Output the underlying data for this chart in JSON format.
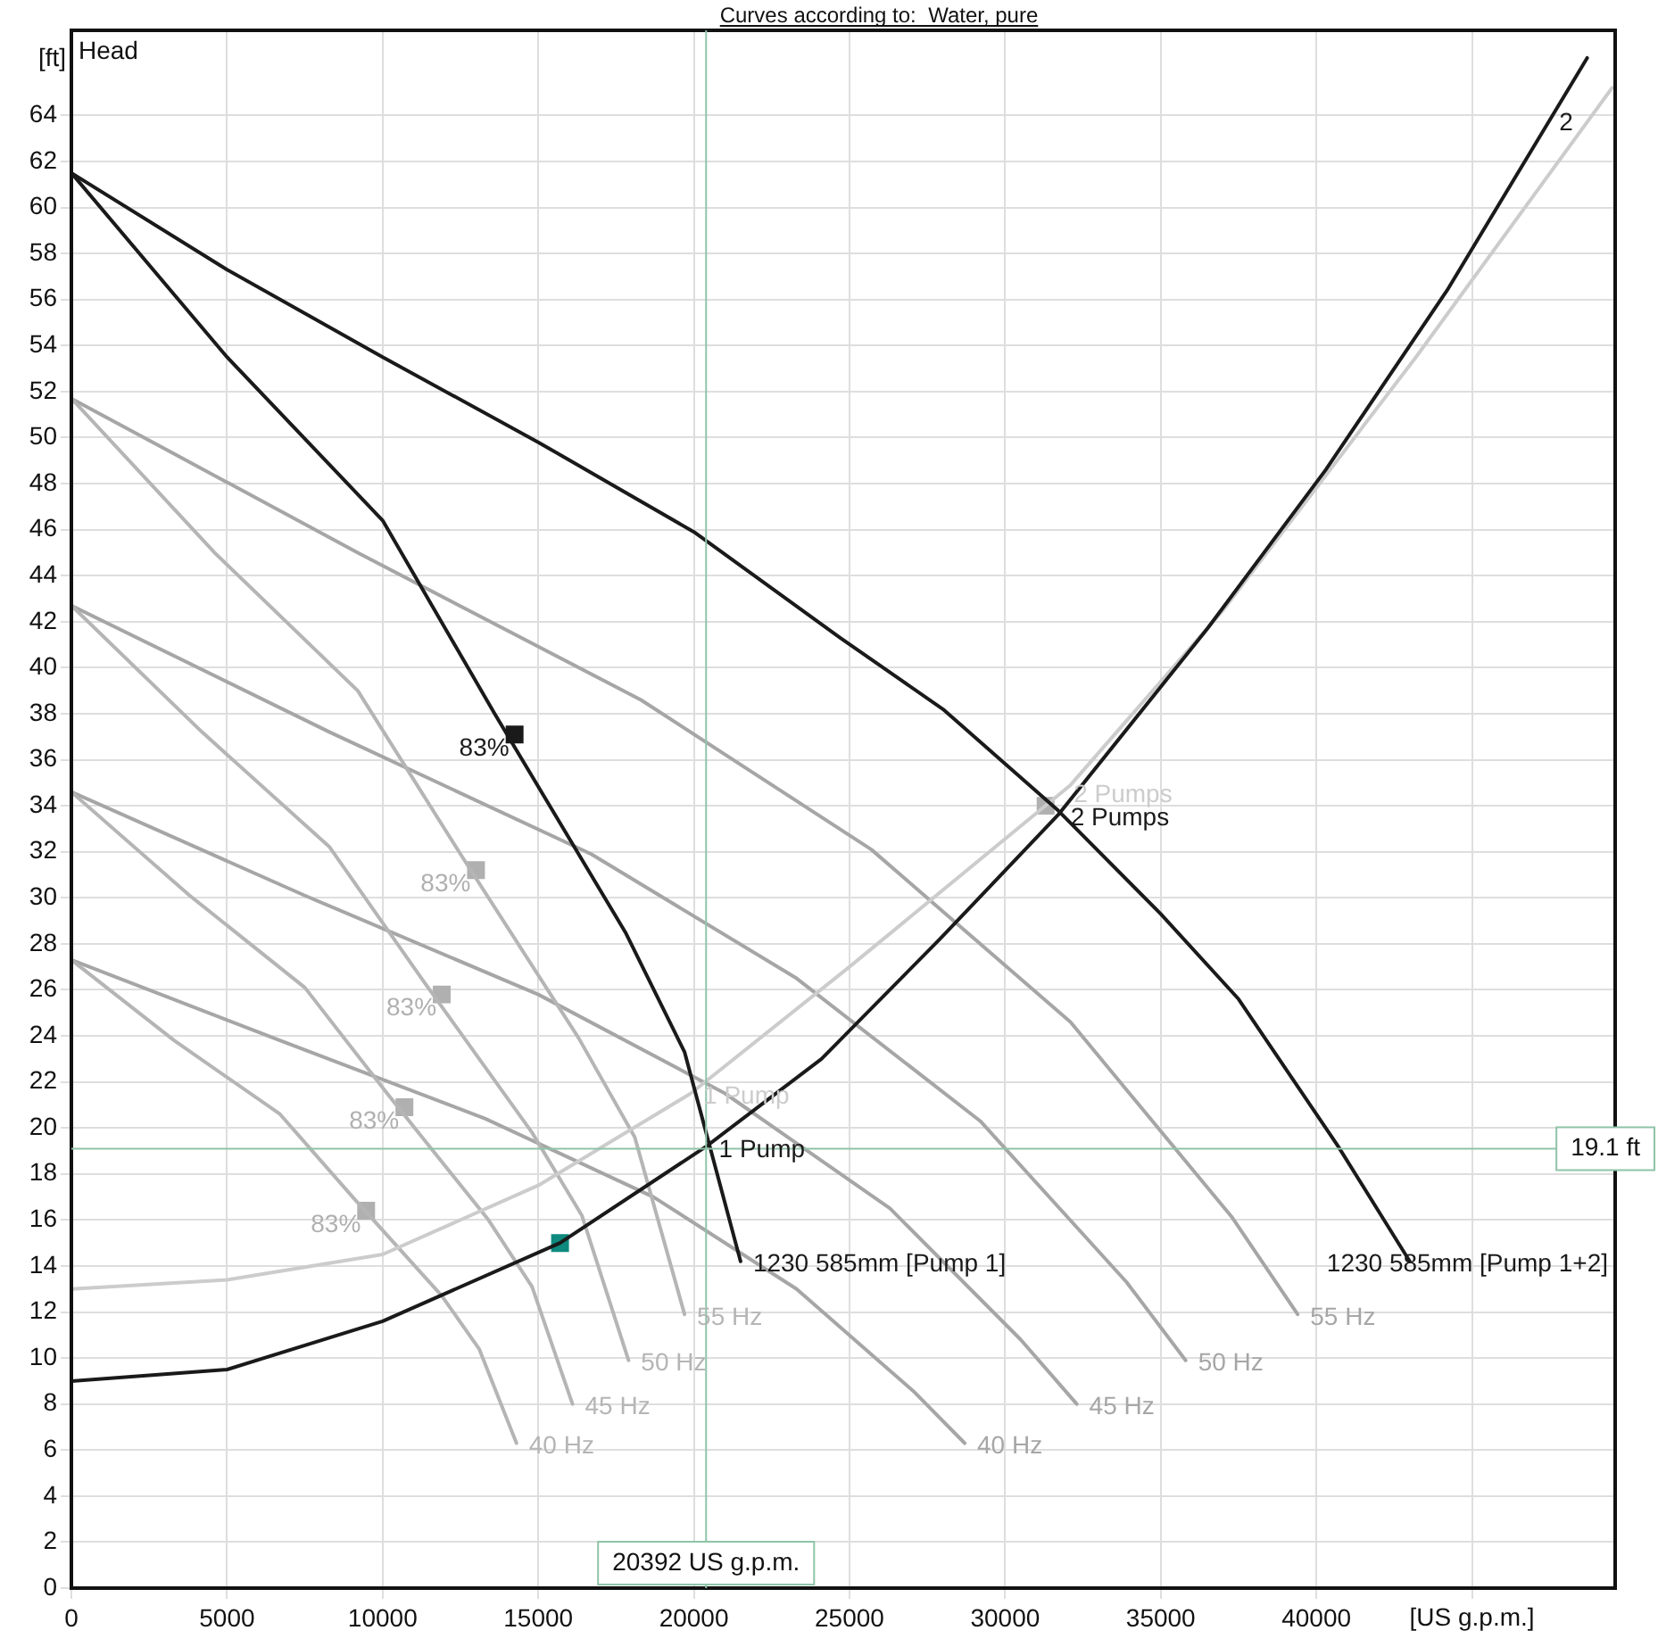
{
  "chart_data": {
    "type": "line",
    "title": "Curves according to:  Water, pure",
    "xlabel": "[US g.p.m.]",
    "ylabel": "[ft]",
    "xlim": [
      0,
      49600
    ],
    "ylim": [
      0,
      67.7
    ],
    "xticks": [
      0,
      5000,
      10000,
      15000,
      20000,
      25000,
      30000,
      35000,
      40000,
      {
        "value": 45000,
        "label": null
      }
    ],
    "yticks": [
      0,
      2,
      4,
      6,
      8,
      10,
      12,
      14,
      16,
      18,
      20,
      22,
      24,
      26,
      28,
      30,
      32,
      34,
      36,
      38,
      40,
      42,
      44,
      46,
      48,
      50,
      52,
      54,
      56,
      58,
      60,
      62,
      64
    ],
    "grid": true,
    "legend": false,
    "marker": "none",
    "line_style": "solid",
    "series": [
      {
        "color": "#1a1a1a",
        "x": [
          0,
          5000,
          10000,
          13600,
          17800,
          19700,
          21500
        ],
        "values": [
          61.5,
          53.5,
          46.4,
          38,
          28.5,
          23.3,
          14.2
        ]
      },
      {
        "color": "#1a1a1a",
        "x": [
          0,
          5000,
          10000,
          15000,
          20000,
          24700,
          28000,
          31700,
          35000,
          37500,
          40700,
          43000
        ],
        "values": [
          61.5,
          57.3,
          53.5,
          49.8,
          45.9,
          41.3,
          38.2,
          33.8,
          29.3,
          25.6,
          19.2,
          14.2
        ]
      },
      {
        "color": "#1a1a1a",
        "x": [
          0,
          5000,
          10000,
          15700,
          20400,
          24100,
          27900,
          31700,
          36500,
          40300,
          44200,
          48700
        ],
        "values": [
          9,
          9.5,
          11.6,
          15,
          19.2,
          23,
          28.2,
          33.6,
          41.7,
          48.6,
          56.4,
          66.5
        ]
      },
      {
        "color": "#cccccc",
        "x": [
          0,
          5000,
          10000,
          15000,
          19900,
          25000,
          32100,
          37000,
          43200,
          49500
        ],
        "values": [
          13,
          13.4,
          14.5,
          17.5,
          21.5,
          27,
          34.9,
          42.5,
          53.5,
          65.2
        ]
      },
      {
        "color": "#b5b5b5",
        "x": [
          0,
          4600,
          9200,
          12500,
          16300,
          18100,
          19700
        ],
        "values": [
          51.7,
          45,
          39,
          31.9,
          23.9,
          19.6,
          11.9
        ]
      },
      {
        "color": "#b5b5b5",
        "x": [
          0,
          4200,
          8300,
          11300,
          14800,
          16400,
          17900
        ],
        "values": [
          42.7,
          37.2,
          32.2,
          26.4,
          19.8,
          16.2,
          9.9
        ]
      },
      {
        "color": "#b5b5b5",
        "x": [
          0,
          3800,
          7500,
          10200,
          13400,
          14800,
          16100
        ],
        "values": [
          34.6,
          30.1,
          26.1,
          21.4,
          16,
          13.1,
          8
        ]
      },
      {
        "color": "#b5b5b5",
        "x": [
          0,
          3300,
          6700,
          9100,
          11900,
          13100,
          14300
        ],
        "values": [
          27.3,
          23.8,
          20.6,
          16.9,
          12.7,
          10.4,
          6.3
        ]
      },
      {
        "color": "#a6a6a6",
        "x": [
          0,
          9200,
          18300,
          25700,
          32100,
          37300,
          39400
        ],
        "values": [
          51.7,
          45,
          38.6,
          32.1,
          24.6,
          16.1,
          11.9
        ]
      },
      {
        "color": "#a6a6a6",
        "x": [
          0,
          8300,
          16700,
          23300,
          29200,
          33900,
          35800
        ],
        "values": [
          42.7,
          37.2,
          31.9,
          26.5,
          20.3,
          13.3,
          9.9
        ]
      },
      {
        "color": "#a6a6a6",
        "x": [
          0,
          7500,
          15000,
          21000,
          26300,
          30500,
          32300
        ],
        "values": [
          34.6,
          30.1,
          25.8,
          21.5,
          16.5,
          10.8,
          8
        ]
      },
      {
        "color": "#a6a6a6",
        "x": [
          0,
          6700,
          13300,
          18700,
          23300,
          27100,
          28700
        ],
        "values": [
          27.3,
          23.8,
          20.4,
          17,
          13,
          8.5,
          6.3
        ]
      },
      {
        "type": "scatter",
        "marker": "square",
        "color": "#1a1a1a",
        "x": [
          14240
        ],
        "values": [
          37.1
        ]
      },
      {
        "type": "scatter",
        "marker": "square",
        "color": "#b0b0b0",
        "x": [
          13000,
          11900,
          10700,
          9470,
          31300
        ],
        "values": [
          31.2,
          25.8,
          20.9,
          16.4,
          34
        ]
      },
      {
        "type": "scatter",
        "marker": "square",
        "color": "#0e8a7e",
        "x": [
          15700
        ],
        "values": [
          15
        ]
      }
    ],
    "ref_lines": [
      {
        "axis": "x",
        "value": 20392,
        "label": "20392 US g.p.m.",
        "color": "#8fc4a8"
      },
      {
        "axis": "y",
        "value": 19.1,
        "label": "19.1 ft",
        "color": "#8fc4a8"
      }
    ],
    "annotations": [
      "Head",
      {
        "text": "83%",
        "x": 14240,
        "y": 37.1
      },
      {
        "text": "83%",
        "x": 13000,
        "y": 31.2
      },
      {
        "text": "83%",
        "x": 11900,
        "y": 25.8
      },
      {
        "text": "83%",
        "x": 10700,
        "y": 20.9
      },
      {
        "text": "83%",
        "x": 9470,
        "y": 16.4
      },
      {
        "text": "1 Pump",
        "x": 19900,
        "y": 21.5
      },
      {
        "text": "1 Pump",
        "x": 20400,
        "y": 19.2
      },
      {
        "text": "2 Pumps",
        "x": 31800,
        "y": 34.6
      },
      {
        "text": "2 Pumps",
        "x": 31700,
        "y": 33.6
      },
      {
        "text": "1230 585mm [Pump 1]",
        "x": 21500,
        "y": 14.2
      },
      {
        "text": "1230 585mm [Pump 1+2]",
        "x": 43000,
        "y": 14.2
      },
      {
        "text": "55 Hz",
        "x": 19700,
        "y": 11.9
      },
      {
        "text": "50 Hz",
        "x": 17900,
        "y": 9.9
      },
      {
        "text": "45 Hz",
        "x": 16100,
        "y": 8
      },
      {
        "text": "40 Hz",
        "x": 14300,
        "y": 6.3
      },
      {
        "text": "55 Hz",
        "x": 39400,
        "y": 11.9
      },
      {
        "text": "50 Hz",
        "x": 35800,
        "y": 9.9
      },
      {
        "text": "45 Hz",
        "x": 32300,
        "y": 8
      },
      {
        "text": "40 Hz",
        "x": 28700,
        "y": 6.3
      },
      {
        "text": "2",
        "x": 47400,
        "y": 63.8
      }
    ]
  }
}
